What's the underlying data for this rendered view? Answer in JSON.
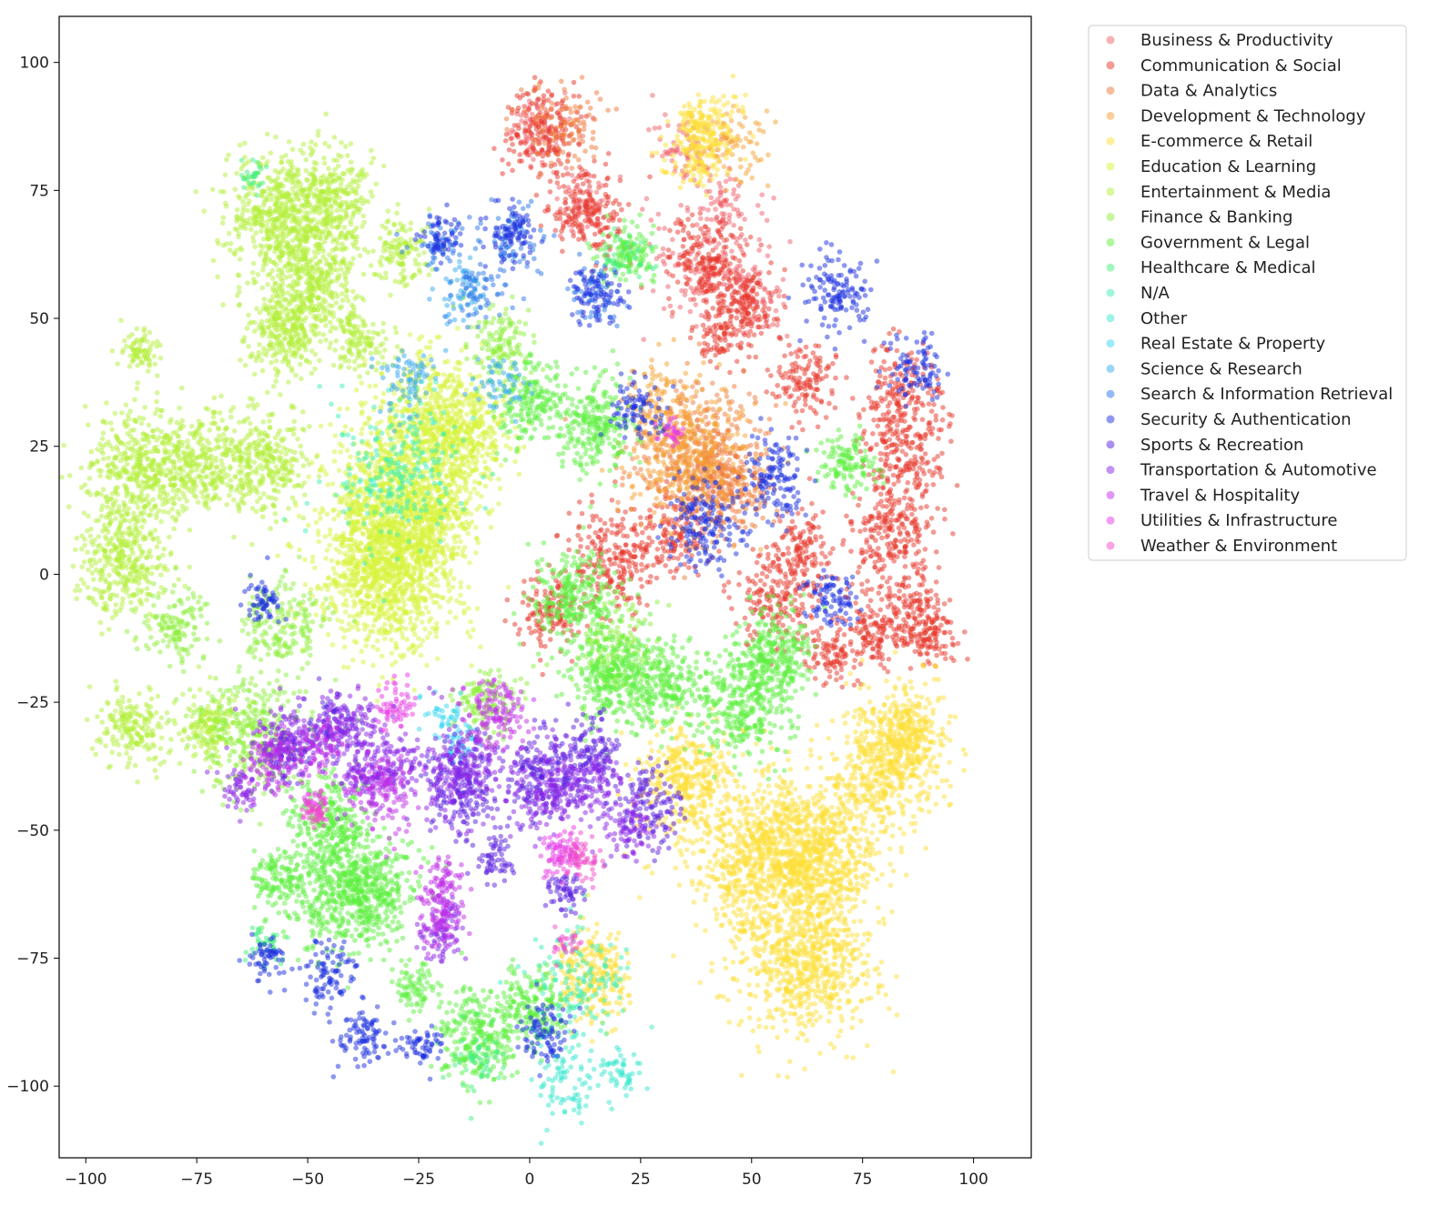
{
  "chart_data": {
    "type": "scatter",
    "title": "",
    "xlabel": "",
    "ylabel": "",
    "xlim": [
      -106,
      113
    ],
    "ylim": [
      -114,
      109
    ],
    "xticks": [
      -100,
      -75,
      -50,
      -25,
      0,
      25,
      50,
      75,
      100
    ],
    "yticks": [
      -100,
      -75,
      -50,
      -25,
      0,
      25,
      50,
      75,
      100
    ],
    "xtick_labels": [
      "−100",
      "−75",
      "−50",
      "−25",
      "0",
      "25",
      "50",
      "75",
      "100"
    ],
    "ytick_labels": [
      "−100",
      "−75",
      "−50",
      "−25",
      "0",
      "25",
      "50",
      "75",
      "100"
    ],
    "grid": false,
    "legend_position": "outside upper-right",
    "marker_alpha": 0.5,
    "series": [
      {
        "name": "Business & Productivity",
        "color": "#f0606a",
        "clusters": [
          [
            2,
            87,
            5,
            1
          ],
          [
            12,
            73,
            5,
            1
          ],
          [
            35,
            82,
            5,
            1
          ],
          [
            44,
            72,
            4,
            1
          ],
          [
            40,
            60,
            8,
            1
          ],
          [
            50,
            55,
            5,
            1
          ]
        ]
      },
      {
        "name": "Communication & Social",
        "color": "#e8362a",
        "clusters": [
          [
            3,
            86,
            6,
            2
          ],
          [
            13,
            71,
            6,
            2
          ],
          [
            40,
            61,
            6,
            2
          ],
          [
            49,
            53,
            5,
            2
          ],
          [
            44,
            46,
            4,
            2
          ],
          [
            62,
            38,
            5,
            2
          ],
          [
            84,
            35,
            6,
            2
          ],
          [
            84,
            23,
            6,
            2
          ],
          [
            82,
            8,
            7,
            2
          ],
          [
            86,
            -7,
            5,
            2
          ],
          [
            77,
            -12,
            5,
            2
          ],
          [
            19,
            3,
            7,
            2
          ],
          [
            33,
            8,
            5,
            2
          ],
          [
            56,
            -5,
            6,
            2
          ],
          [
            68,
            -16,
            4,
            2
          ],
          [
            61,
            5,
            5,
            2
          ],
          [
            5,
            -8,
            5,
            2
          ],
          [
            90,
            -12,
            4,
            2
          ]
        ]
      },
      {
        "name": "Data & Analytics",
        "color": "#f07a3a",
        "clusters": [
          [
            36,
            23,
            9,
            2
          ],
          [
            45,
            18,
            7,
            2
          ],
          [
            8,
            88,
            6,
            1
          ]
        ]
      },
      {
        "name": "Development & Technology",
        "color": "#f5a232",
        "clusters": [
          [
            36,
            23,
            9,
            2
          ],
          [
            30,
            34,
            5,
            1
          ],
          [
            45,
            84,
            5,
            1
          ]
        ]
      },
      {
        "name": "E-commerce & Retail",
        "color": "#fde038",
        "clusters": [
          [
            40,
            87,
            5,
            3
          ],
          [
            37,
            81,
            4,
            2
          ],
          [
            35,
            -40,
            7,
            3
          ],
          [
            53,
            -55,
            11,
            3
          ],
          [
            62,
            -75,
            10,
            3
          ],
          [
            65,
            -55,
            9,
            3
          ],
          [
            80,
            -38,
            8,
            3
          ],
          [
            14,
            -78,
            6,
            3
          ],
          [
            85,
            -30,
            6,
            3
          ]
        ]
      },
      {
        "name": "Education & Learning",
        "color": "#d8f43a",
        "clusters": [
          [
            -32,
            15,
            10,
            3
          ],
          [
            -32,
            -2,
            10,
            3
          ],
          [
            -22,
            30,
            9,
            3
          ],
          [
            -30,
            5,
            8,
            3
          ],
          [
            -14,
            27,
            6,
            3
          ],
          [
            -20,
            12,
            6,
            3
          ]
        ]
      },
      {
        "name": "Entertainment & Media",
        "color": "#b4f03a",
        "clusters": [
          [
            -58,
            70,
            8,
            3
          ],
          [
            -50,
            58,
            8,
            3
          ],
          [
            -46,
            73,
            7,
            3
          ],
          [
            -88,
            20,
            8,
            3
          ],
          [
            -92,
            2,
            7,
            3
          ],
          [
            -75,
            22,
            6,
            3
          ],
          [
            -60,
            22,
            7,
            3
          ],
          [
            -55,
            47,
            6,
            3
          ],
          [
            -90,
            -30,
            5,
            3
          ],
          [
            -72,
            -30,
            5,
            3
          ],
          [
            -38,
            45,
            4,
            3
          ],
          [
            -29,
            63,
            4,
            3
          ],
          [
            -88,
            44,
            3,
            3
          ]
        ]
      },
      {
        "name": "Finance & Banking",
        "color": "#8ef03c",
        "clusters": [
          [
            -62,
            -30,
            8,
            2
          ],
          [
            -55,
            -10,
            6,
            2
          ],
          [
            -80,
            -10,
            5,
            2
          ],
          [
            20,
            -15,
            6,
            2
          ],
          [
            -10,
            -25,
            5,
            2
          ],
          [
            -7,
            45,
            5,
            2
          ]
        ]
      },
      {
        "name": "Government & Legal",
        "color": "#5ef040",
        "clusters": [
          [
            -42,
            -62,
            8,
            3
          ],
          [
            -45,
            -48,
            6,
            3
          ],
          [
            -35,
            -62,
            6,
            3
          ],
          [
            15,
            29,
            6,
            3
          ],
          [
            0,
            34,
            5,
            3
          ],
          [
            48,
            -25,
            7,
            3
          ],
          [
            30,
            -22,
            6,
            3
          ],
          [
            18,
            -20,
            6,
            3
          ],
          [
            -12,
            -90,
            6,
            3
          ],
          [
            0,
            -85,
            5,
            3
          ],
          [
            22,
            63,
            4,
            3
          ],
          [
            72,
            22,
            4,
            3
          ],
          [
            -26,
            -80,
            3,
            3
          ],
          [
            -57,
            -60,
            4,
            3
          ],
          [
            10,
            -5,
            6,
            3
          ],
          [
            55,
            -15,
            6,
            3
          ]
        ]
      },
      {
        "name": "Healthcare & Medical",
        "color": "#44f080",
        "clusters": [
          [
            -62,
            78,
            2,
            1
          ],
          [
            -60,
            -72,
            3,
            1
          ],
          [
            -12,
            -95,
            4,
            1
          ],
          [
            22,
            62,
            3,
            1
          ]
        ]
      },
      {
        "name": "N/A",
        "color": "#3ef0b4",
        "clusters": [
          [
            -30,
            20,
            10,
            1
          ],
          [
            10,
            -80,
            8,
            1
          ]
        ]
      },
      {
        "name": "Other",
        "color": "#38e8d0",
        "clusters": [
          [
            20,
            -98,
            4,
            1
          ],
          [
            8,
            -100,
            5,
            1
          ]
        ]
      },
      {
        "name": "Real Estate & Property",
        "color": "#38d8f6",
        "clusters": [
          [
            -18,
            -28,
            3,
            1
          ],
          [
            -16,
            -34,
            3,
            1
          ]
        ]
      },
      {
        "name": "Science & Research",
        "color": "#36aaf0",
        "clusters": [
          [
            -15,
            55,
            4,
            1
          ],
          [
            -28,
            38,
            5,
            1
          ],
          [
            -6,
            38,
            4,
            1
          ]
        ]
      },
      {
        "name": "Search & Information Retrieval",
        "color": "#2a78e8",
        "clusters": [
          [
            -20,
            65,
            4,
            1
          ],
          [
            -4,
            65,
            5,
            1
          ],
          [
            15,
            55,
            4,
            1
          ],
          [
            -12,
            55,
            4,
            1
          ]
        ]
      },
      {
        "name": "Security & Authentication",
        "color": "#1c30e0",
        "clusters": [
          [
            -20,
            66,
            3,
            2
          ],
          [
            -4,
            67,
            4,
            2
          ],
          [
            15,
            54,
            4,
            2
          ],
          [
            70,
            55,
            5,
            2
          ],
          [
            87,
            40,
            4,
            2
          ],
          [
            55,
            19,
            5,
            2
          ],
          [
            68,
            -5,
            4,
            2
          ],
          [
            -60,
            -5,
            3,
            2
          ],
          [
            -45,
            -78,
            4,
            2
          ],
          [
            -37,
            -90,
            4,
            2
          ],
          [
            -59,
            -75,
            3,
            2
          ],
          [
            3,
            -90,
            4,
            2
          ],
          [
            24,
            32,
            4,
            2
          ],
          [
            40,
            10,
            6,
            2
          ],
          [
            -24,
            -92,
            3,
            2
          ]
        ]
      },
      {
        "name": "Sports & Recreation",
        "color": "#5a1ee0",
        "clusters": [
          [
            3,
            -40,
            6,
            2
          ],
          [
            -15,
            -42,
            6,
            2
          ],
          [
            13,
            -35,
            5,
            2
          ],
          [
            8,
            -62,
            3,
            2
          ],
          [
            -8,
            -55,
            3,
            2
          ],
          [
            -55,
            -35,
            4,
            2
          ],
          [
            -45,
            -30,
            4,
            2
          ],
          [
            26,
            -45,
            5,
            2
          ]
        ]
      },
      {
        "name": "Transportation & Automotive",
        "color": "#8a24e8",
        "clusters": [
          [
            -15,
            -38,
            7,
            2
          ],
          [
            4,
            -42,
            6,
            2
          ],
          [
            -20,
            -70,
            4,
            2
          ],
          [
            -55,
            -33,
            5,
            2
          ],
          [
            -40,
            -30,
            5,
            2
          ],
          [
            -30,
            -38,
            4,
            2
          ],
          [
            15,
            -40,
            4,
            2
          ],
          [
            22,
            -50,
            4,
            2
          ],
          [
            -38,
            -40,
            4,
            2
          ],
          [
            -65,
            -42,
            3,
            2
          ]
        ]
      },
      {
        "name": "Travel & Hospitality",
        "color": "#c030e8",
        "clusters": [
          [
            -20,
            -67,
            4,
            2
          ],
          [
            -33,
            -42,
            5,
            2
          ],
          [
            -20,
            -60,
            3,
            2
          ],
          [
            -58,
            -37,
            4,
            2
          ],
          [
            -8,
            -27,
            5,
            2
          ],
          [
            -48,
            -34,
            4,
            2
          ]
        ]
      },
      {
        "name": "Utilities & Infrastructure",
        "color": "#e83ae6",
        "clusters": [
          [
            7,
            -55,
            3,
            3
          ],
          [
            -48,
            -45,
            2,
            2
          ],
          [
            -30,
            -25,
            3,
            2
          ],
          [
            32,
            28,
            2,
            1
          ]
        ]
      },
      {
        "name": "Weather & Environment",
        "color": "#f04cc8",
        "clusters": [
          [
            12,
            -56,
            3,
            2
          ],
          [
            -48,
            -47,
            2,
            2
          ],
          [
            8,
            -72,
            2,
            1
          ]
        ]
      }
    ]
  }
}
